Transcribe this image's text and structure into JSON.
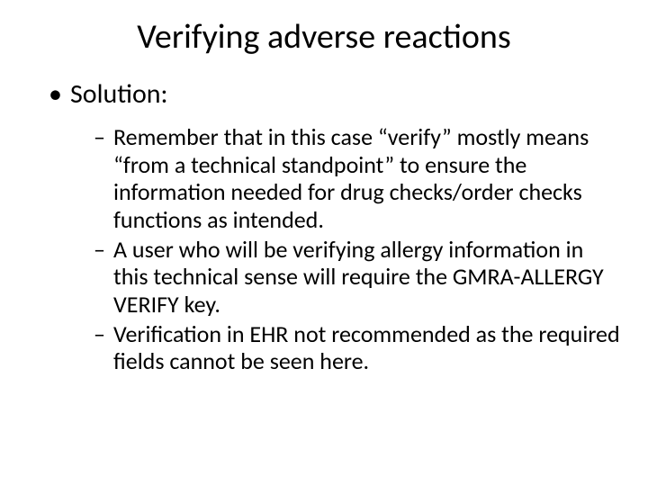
{
  "slide": {
    "title": "Verifying adverse reactions",
    "level1": "Solution:",
    "bullets": [
      "Remember that in this case “verify” mostly means “from a technical standpoint” to ensure the information needed for drug checks/order checks functions as intended.",
      "A user who will be verifying allergy information in this technical sense will require the GMRA-ALLERGY VERIFY key.",
      "Verification in EHR not recommended as the required fields cannot be seen here."
    ]
  },
  "styling": {
    "background_color": "#ffffff",
    "text_color": "#000000",
    "title_fontsize": 38,
    "level1_fontsize": 30,
    "level2_fontsize": 26,
    "font_family": "Calibri"
  }
}
